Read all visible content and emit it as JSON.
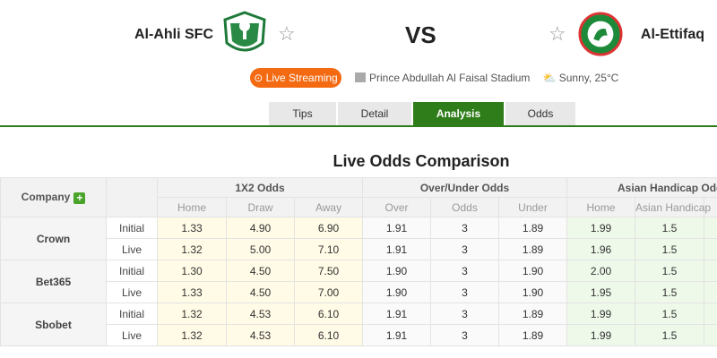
{
  "header": {
    "home_team": "Al-Ahli SFC",
    "away_team": "Al-Ettifaq",
    "vs": "VS",
    "live_label": "Live Streaming",
    "stadium": "Prince Abdullah Al Faisal Stadium",
    "weather": "Sunny, 25°C",
    "accent": "#2e7d1a",
    "live_color": "#f46a12"
  },
  "tabs": [
    "Tips",
    "Detail",
    "Analysis",
    "Odds"
  ],
  "active_tab": "Analysis",
  "title": "Live Odds Comparison",
  "table": {
    "company_header": "Company",
    "groups": [
      "1X2 Odds",
      "Over/Under Odds",
      "Asian Handicap Odds"
    ],
    "subheaders": [
      "Home",
      "Draw",
      "Away",
      "Over",
      "Odds",
      "Under",
      "Home",
      "Asian Handicap"
    ],
    "companies": [
      {
        "name": "Crown",
        "rows": [
          {
            "type": "Initial",
            "v": [
              "1.33",
              "4.90",
              "6.90",
              "1.91",
              "3",
              "1.89",
              "1.99",
              "1.5"
            ]
          },
          {
            "type": "Live",
            "v": [
              "1.32",
              "5.00",
              "7.10",
              "1.91",
              "3",
              "1.89",
              "1.96",
              "1.5"
            ]
          }
        ]
      },
      {
        "name": "Bet365",
        "rows": [
          {
            "type": "Initial",
            "v": [
              "1.30",
              "4.50",
              "7.50",
              "1.90",
              "3",
              "1.90",
              "2.00",
              "1.5"
            ]
          },
          {
            "type": "Live",
            "v": [
              "1.33",
              "4.50",
              "7.00",
              "1.90",
              "3",
              "1.90",
              "1.95",
              "1.5"
            ]
          }
        ]
      },
      {
        "name": "Sbobet",
        "rows": [
          {
            "type": "Initial",
            "v": [
              "1.32",
              "4.53",
              "6.10",
              "1.91",
              "3",
              "1.89",
              "1.99",
              "1.5"
            ]
          },
          {
            "type": "Live",
            "v": [
              "1.32",
              "4.53",
              "6.10",
              "1.91",
              "3",
              "1.89",
              "1.99",
              "1.5"
            ]
          }
        ]
      }
    ]
  }
}
